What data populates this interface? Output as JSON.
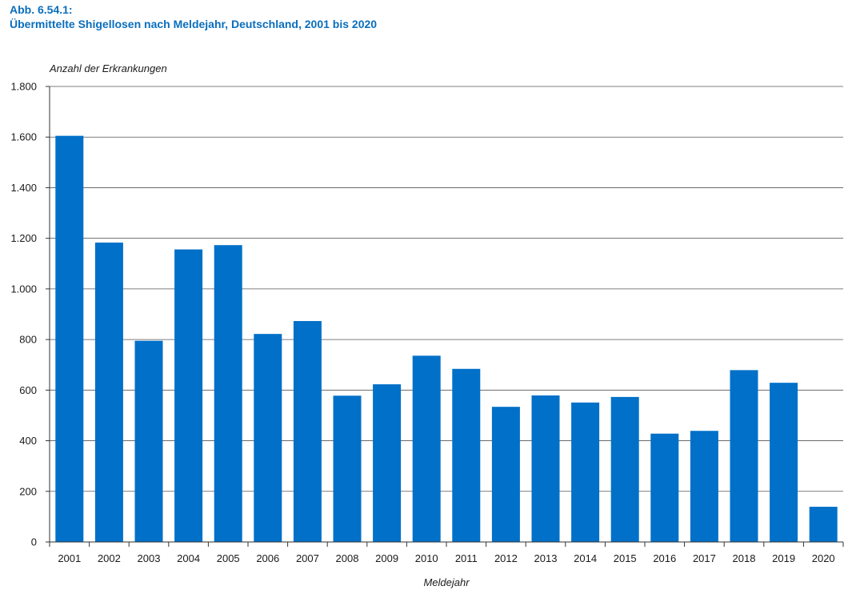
{
  "figure": {
    "label": "Abb. 6.54.1:",
    "title": "Übermittelte Shigellosen nach Meldejahr, Deutschland, 2001 bis 2020"
  },
  "chart_data": {
    "type": "bar",
    "title": "Übermittelte Shigellosen nach Meldejahr, Deutschland, 2001 bis 2020",
    "xlabel": "Meldejahr",
    "ylabel": "Anzahl der Erkrankungen",
    "ylim": [
      0,
      1800
    ],
    "yticks": [
      0,
      200,
      400,
      600,
      800,
      1000,
      1200,
      1400,
      1600,
      1800
    ],
    "ytick_labels": [
      "0",
      "200",
      "400",
      "600",
      "800",
      "1.000",
      "1.200",
      "1.400",
      "1.600",
      "1.800"
    ],
    "grid": true,
    "bar_color": "#0070c8",
    "categories": [
      "2001",
      "2002",
      "2003",
      "2004",
      "2005",
      "2006",
      "2007",
      "2008",
      "2009",
      "2010",
      "2011",
      "2012",
      "2013",
      "2014",
      "2015",
      "2016",
      "2017",
      "2018",
      "2019",
      "2020"
    ],
    "values": [
      1605,
      1183,
      795,
      1156,
      1173,
      822,
      873,
      578,
      623,
      736,
      684,
      534,
      579,
      551,
      573,
      428,
      439,
      679,
      629,
      139
    ]
  }
}
